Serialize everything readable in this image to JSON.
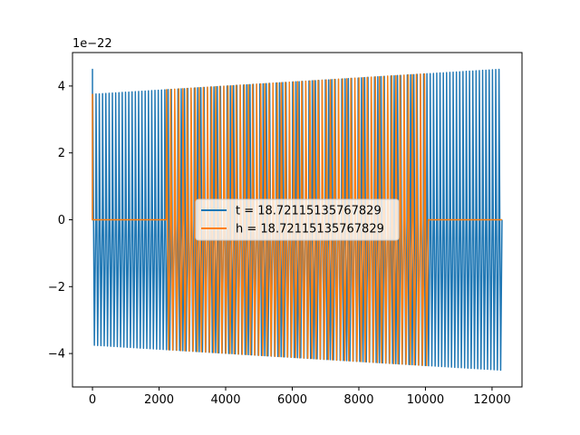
{
  "chart_data": {
    "type": "line",
    "title": "",
    "xlabel": "",
    "ylabel": "",
    "xlim": [
      -600,
      12900
    ],
    "ylim": [
      -5,
      5
    ],
    "x_ticks": [
      0,
      2000,
      4000,
      6000,
      8000,
      10000,
      12000
    ],
    "x_tick_labels": [
      "0",
      "2000",
      "4000",
      "6000",
      "8000",
      "10000",
      "12000"
    ],
    "y_ticks": [
      -4,
      -2,
      0,
      2,
      4
    ],
    "y_tick_labels": [
      "−4",
      "−2",
      "0",
      "2",
      "4"
    ],
    "y_offset_label": "1e−22",
    "grid": false,
    "legend_position": "center",
    "series": [
      {
        "name": "t = 18.72115135767829",
        "color": "#1f77b4",
        "x_range": [
          0,
          12300
        ],
        "amplitude_start": 3.75,
        "amplitude_end": 4.5,
        "initial_spike": 4.5,
        "oscillations": 125,
        "flat_segments": []
      },
      {
        "name": "h = 18.72115135767829",
        "color": "#ff7f0e",
        "x_range": [
          0,
          12300
        ],
        "amplitude_start": 3.75,
        "amplitude_end": 4.5,
        "initial_spike": 3.75,
        "oscillations": 100,
        "flat_segments": [
          [
            0,
            2200
          ],
          [
            10100,
            12300
          ]
        ]
      }
    ]
  }
}
